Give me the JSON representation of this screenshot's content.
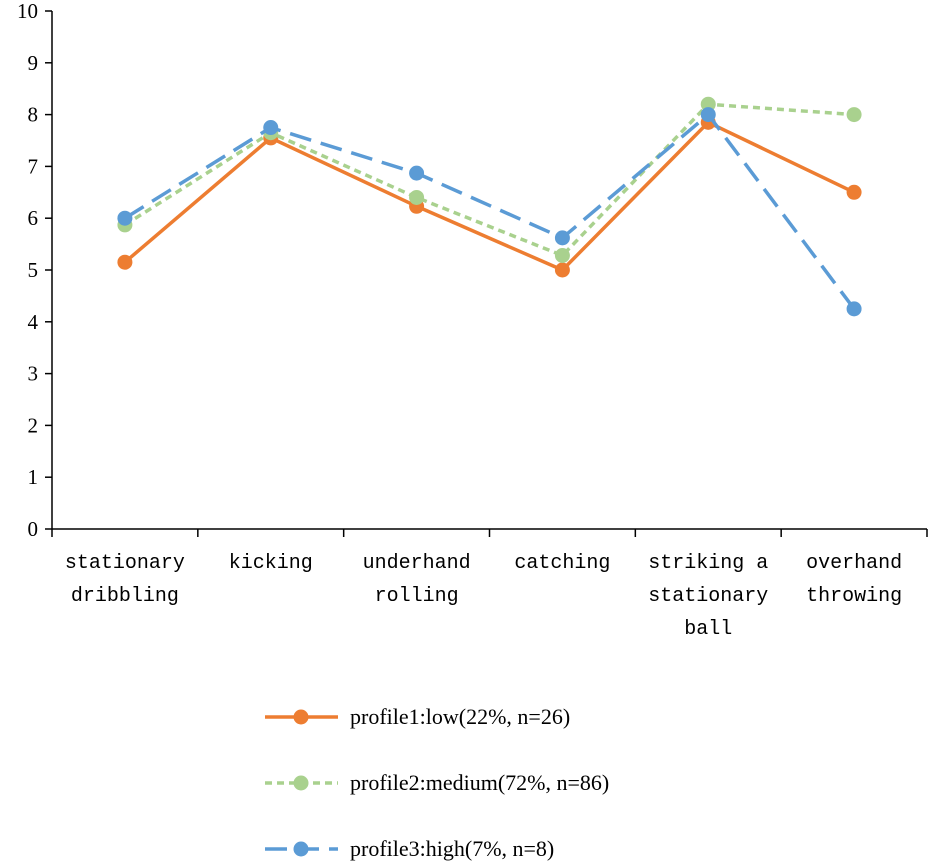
{
  "chart_data": {
    "type": "line",
    "title": "",
    "xlabel": "",
    "ylabel": "",
    "ylim": [
      0,
      10
    ],
    "yticks": [
      "0",
      "1",
      "2",
      "3",
      "4",
      "5",
      "6",
      "7",
      "8",
      "9",
      "10"
    ],
    "grid": false,
    "legend_position": "bottom",
    "categories": [
      [
        "stationary",
        "dribbling"
      ],
      [
        "kicking"
      ],
      [
        "underhand",
        "rolling"
      ],
      [
        "catching"
      ],
      [
        "striking a",
        "stationary",
        "ball"
      ],
      [
        "overhand",
        "throwing"
      ]
    ],
    "series": [
      {
        "name": "profile1:low(22%, n=26)",
        "color": "#ED7D31",
        "dash": "solid",
        "values": [
          5.15,
          7.55,
          6.23,
          5.0,
          7.85,
          6.5
        ]
      },
      {
        "name": "profile2:medium(72%, n=86)",
        "color": "#A9D18E",
        "dash": "short",
        "values": [
          5.87,
          7.65,
          6.4,
          5.28,
          8.2,
          8.0
        ]
      },
      {
        "name": "profile3:high(7%, n=8)",
        "color": "#5B9BD5",
        "dash": "long",
        "values": [
          6.0,
          7.75,
          6.87,
          5.62,
          8.0,
          4.25
        ]
      }
    ]
  }
}
